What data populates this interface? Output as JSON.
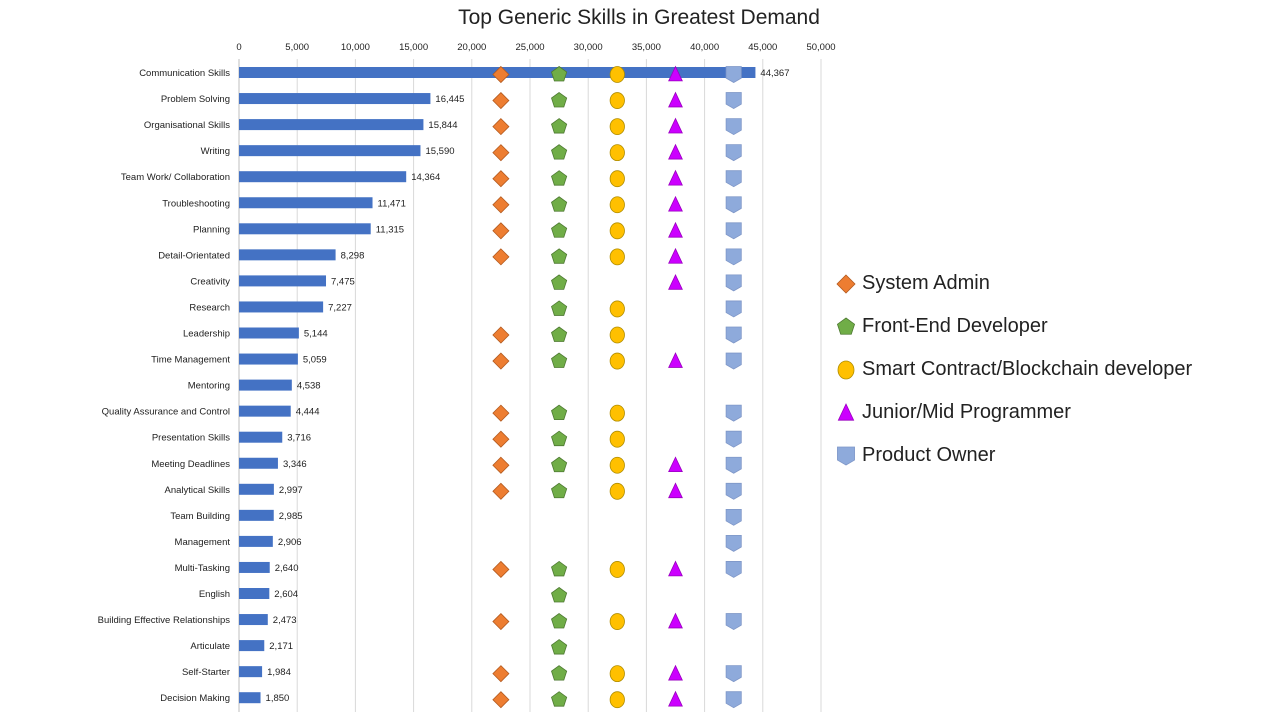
{
  "chart_data": {
    "type": "bar",
    "orientation": "horizontal",
    "title": "Top Generic Skills in Greatest Demand",
    "xlim": [
      0,
      50000
    ],
    "xticks": [
      0,
      5000,
      10000,
      15000,
      20000,
      25000,
      30000,
      35000,
      40000,
      45000,
      50000
    ],
    "xtick_labels": [
      "0",
      "5,000",
      "10,000",
      "15,000",
      "20,000",
      "25,000",
      "30,000",
      "35,000",
      "40,000",
      "45,000",
      "50,000"
    ],
    "grid": true,
    "legend_position": "right",
    "bar_color": "#4472c4",
    "categories": [
      "Communication Skills",
      "Problem Solving",
      "Organisational Skills",
      "Writing",
      "Team Work/ Collaboration",
      "Troubleshooting",
      "Planning",
      "Detail-Orientated",
      "Creativity",
      "Research",
      "Leadership",
      "Time Management",
      "Mentoring",
      "Quality Assurance and Control",
      "Presentation Skills",
      "Meeting Deadlines",
      "Analytical Skills",
      "Team Building",
      "Management",
      "Multi-Tasking",
      "English",
      "Building Effective Relationships",
      "Articulate",
      "Self-Starter",
      "Decision Making"
    ],
    "values": [
      44367,
      16445,
      15844,
      15590,
      14364,
      11471,
      11315,
      8298,
      7475,
      7227,
      5144,
      5059,
      4538,
      4444,
      3716,
      3346,
      2997,
      2985,
      2906,
      2640,
      2604,
      2473,
      2171,
      1984,
      1850
    ],
    "value_labels": [
      "44,367",
      "16,445",
      "15,844",
      "15,590",
      "14,364",
      "11,471",
      "11,315",
      "8,298",
      "7,475",
      "7,227",
      "5,144",
      "5,059",
      "4,538",
      "4,444",
      "3,716",
      "3,346",
      "2,997",
      "2,985",
      "2,906",
      "2,640",
      "2,604",
      "2,473",
      "2,171",
      "1,984",
      "1,850"
    ],
    "marker_series": [
      {
        "name": "System Admin",
        "marker": "diamond",
        "color": "#ed7d31",
        "x": 22500,
        "flags": [
          1,
          1,
          1,
          1,
          1,
          1,
          1,
          1,
          0,
          0,
          1,
          1,
          0,
          1,
          1,
          1,
          1,
          0,
          0,
          1,
          0,
          1,
          0,
          1,
          1
        ]
      },
      {
        "name": "Front-End Developer",
        "marker": "pentagon",
        "color": "#70ad47",
        "x": 27500,
        "flags": [
          1,
          1,
          1,
          1,
          1,
          1,
          1,
          1,
          1,
          1,
          1,
          1,
          0,
          1,
          1,
          1,
          1,
          0,
          0,
          1,
          1,
          1,
          1,
          1,
          1
        ]
      },
      {
        "name": "Smart Contract/Blockchain developer",
        "marker": "circle",
        "color": "#ffc000",
        "x": 32500,
        "flags": [
          1,
          1,
          1,
          1,
          1,
          1,
          1,
          1,
          0,
          1,
          1,
          1,
          0,
          1,
          1,
          1,
          1,
          0,
          0,
          1,
          0,
          1,
          0,
          1,
          1
        ]
      },
      {
        "name": "Junior/Mid Programmer",
        "marker": "triangle",
        "color": "#cc00ff",
        "x": 37500,
        "flags": [
          1,
          1,
          1,
          1,
          1,
          1,
          1,
          1,
          1,
          0,
          0,
          1,
          0,
          0,
          0,
          1,
          1,
          0,
          0,
          1,
          0,
          1,
          0,
          1,
          1
        ]
      },
      {
        "name": "Product Owner",
        "marker": "shield",
        "color": "#8eaadb",
        "x": 42500,
        "flags": [
          1,
          1,
          1,
          1,
          1,
          1,
          1,
          1,
          1,
          1,
          1,
          1,
          0,
          1,
          1,
          1,
          1,
          1,
          1,
          1,
          0,
          1,
          0,
          1,
          1
        ]
      }
    ]
  }
}
